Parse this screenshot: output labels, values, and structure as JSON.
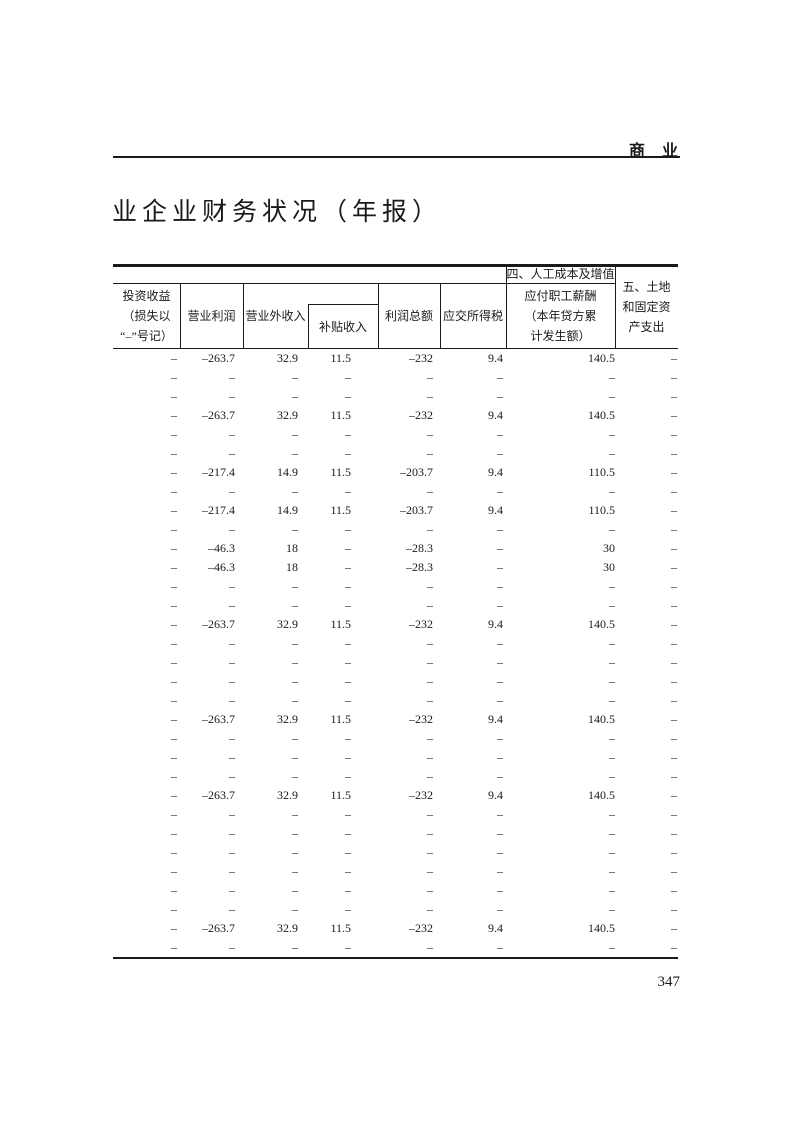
{
  "page": {
    "running_head": "商业",
    "title": "业企业财务状况（年报）",
    "page_number": "347"
  },
  "table": {
    "header": {
      "col1": "投资收益\n（损失以\n“–”号记）",
      "col2": "营业利润",
      "col3": "营业外收入",
      "col4_sub": "补贴收入",
      "col5": "利润总额",
      "col6": "应交所得税",
      "col7_group": "四、人工成本及增值",
      "col7": "应付职工薪酬\n（本年贷方累\n计发生额）",
      "col8": "五、土地\n和固定资\n产支出"
    },
    "columns": [
      "投资收益（损失以“–”号记）",
      "营业利润",
      "营业外收入",
      "补贴收入",
      "利润总额",
      "应交所得税",
      "应付职工薪酬（本年贷方累计发生额）",
      "五、土地和固定资产支出"
    ],
    "rows": [
      [
        "–",
        "–263.7",
        "32.9",
        "11.5",
        "–232",
        "9.4",
        "140.5",
        "–"
      ],
      [
        "–",
        "–",
        "–",
        "–",
        "–",
        "–",
        "–",
        "–"
      ],
      [
        "–",
        "–",
        "–",
        "–",
        "–",
        "–",
        "–",
        "–"
      ],
      [
        "–",
        "–263.7",
        "32.9",
        "11.5",
        "–232",
        "9.4",
        "140.5",
        "–"
      ],
      [
        "–",
        "–",
        "–",
        "–",
        "–",
        "–",
        "–",
        "–"
      ],
      [
        "–",
        "–",
        "–",
        "–",
        "–",
        "–",
        "–",
        "–"
      ],
      [
        "–",
        "–217.4",
        "14.9",
        "11.5",
        "–203.7",
        "9.4",
        "110.5",
        "–"
      ],
      [
        "–",
        "–",
        "–",
        "–",
        "–",
        "–",
        "–",
        "–"
      ],
      [
        "–",
        "–217.4",
        "14.9",
        "11.5",
        "–203.7",
        "9.4",
        "110.5",
        "–"
      ],
      [
        "–",
        "–",
        "–",
        "–",
        "–",
        "–",
        "–",
        "–"
      ],
      [
        "–",
        "–46.3",
        "18",
        "–",
        "–28.3",
        "–",
        "30",
        "–"
      ],
      [
        "–",
        "–46.3",
        "18",
        "–",
        "–28.3",
        "–",
        "30",
        "–"
      ],
      [
        "–",
        "–",
        "–",
        "–",
        "–",
        "–",
        "–",
        "–"
      ],
      [
        "–",
        "–",
        "–",
        "–",
        "–",
        "–",
        "–",
        "–"
      ],
      [
        "–",
        "–263.7",
        "32.9",
        "11.5",
        "–232",
        "9.4",
        "140.5",
        "–"
      ],
      [
        "–",
        "–",
        "–",
        "–",
        "–",
        "–",
        "–",
        "–"
      ],
      [
        "–",
        "–",
        "–",
        "–",
        "–",
        "–",
        "–",
        "–"
      ],
      [
        "–",
        "–",
        "–",
        "–",
        "–",
        "–",
        "–",
        "–"
      ],
      [
        "–",
        "–",
        "–",
        "–",
        "–",
        "–",
        "–",
        "–"
      ],
      [
        "–",
        "–263.7",
        "32.9",
        "11.5",
        "–232",
        "9.4",
        "140.5",
        "–"
      ],
      [
        "–",
        "–",
        "–",
        "–",
        "–",
        "–",
        "–",
        "–"
      ],
      [
        "–",
        "–",
        "–",
        "–",
        "–",
        "–",
        "–",
        "–"
      ],
      [
        "–",
        "–",
        "–",
        "–",
        "–",
        "–",
        "–",
        "–"
      ],
      [
        "–",
        "–263.7",
        "32.9",
        "11.5",
        "–232",
        "9.4",
        "140.5",
        "–"
      ],
      [
        "–",
        "–",
        "–",
        "–",
        "–",
        "–",
        "–",
        "–"
      ],
      [
        "–",
        "–",
        "–",
        "–",
        "–",
        "–",
        "–",
        "–"
      ],
      [
        "–",
        "–",
        "–",
        "–",
        "–",
        "–",
        "–",
        "–"
      ],
      [
        "–",
        "–",
        "–",
        "–",
        "–",
        "–",
        "–",
        "–"
      ],
      [
        "–",
        "–",
        "–",
        "–",
        "–",
        "–",
        "–",
        "–"
      ],
      [
        "–",
        "–",
        "–",
        "–",
        "–",
        "–",
        "–",
        "–"
      ],
      [
        "–",
        "–263.7",
        "32.9",
        "11.5",
        "–232",
        "9.4",
        "140.5",
        "–"
      ],
      [
        "–",
        "–",
        "–",
        "–",
        "–",
        "–",
        "–",
        "–"
      ]
    ]
  }
}
